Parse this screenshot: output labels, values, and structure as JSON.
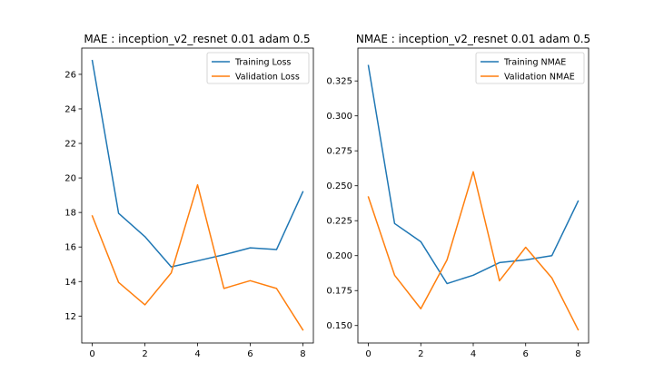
{
  "chart_data": [
    {
      "type": "line",
      "title": "MAE : inception_v2_resnet 0.01 adam 0.5",
      "xlabel": "",
      "ylabel": "",
      "x": [
        0,
        1,
        2,
        3,
        4,
        5,
        6,
        7,
        8
      ],
      "xlim": [
        -0.4,
        8.4
      ],
      "ylim": [
        10.44,
        27.52
      ],
      "xticks": [
        0,
        2,
        4,
        6,
        8
      ],
      "yticks": [
        12,
        14,
        16,
        18,
        20,
        22,
        24,
        26
      ],
      "ytick_decimals": 0,
      "grid": false,
      "legend": "top-right",
      "series": [
        {
          "name": "Training Loss",
          "color": "#1f77b4",
          "values": [
            26.8,
            17.95,
            16.6,
            14.85,
            15.2,
            15.55,
            15.95,
            15.85,
            19.2
          ]
        },
        {
          "name": "Validation Loss",
          "color": "#ff7f0e",
          "values": [
            17.8,
            13.95,
            12.65,
            14.5,
            19.6,
            13.6,
            14.05,
            13.6,
            11.2
          ]
        }
      ]
    },
    {
      "type": "line",
      "title": "NMAE : inception_v2_resnet 0.01 adam 0.5",
      "xlabel": "",
      "ylabel": "",
      "x": [
        0,
        1,
        2,
        3,
        4,
        5,
        6,
        7,
        8
      ],
      "xlim": [
        -0.4,
        8.4
      ],
      "ylim": [
        0.1375,
        0.3485
      ],
      "xticks": [
        0,
        2,
        4,
        6,
        8
      ],
      "yticks": [
        0.15,
        0.175,
        0.2,
        0.225,
        0.25,
        0.275,
        0.3,
        0.325
      ],
      "ytick_decimals": 3,
      "grid": false,
      "legend": "top-right",
      "series": [
        {
          "name": "Training NMAE",
          "color": "#1f77b4",
          "values": [
            0.336,
            0.223,
            0.21,
            0.18,
            0.186,
            0.195,
            0.197,
            0.2,
            0.239
          ]
        },
        {
          "name": "Validation NMAE",
          "color": "#ff7f0e",
          "values": [
            0.242,
            0.186,
            0.162,
            0.197,
            0.26,
            0.182,
            0.206,
            0.184,
            0.147
          ]
        }
      ]
    }
  ]
}
